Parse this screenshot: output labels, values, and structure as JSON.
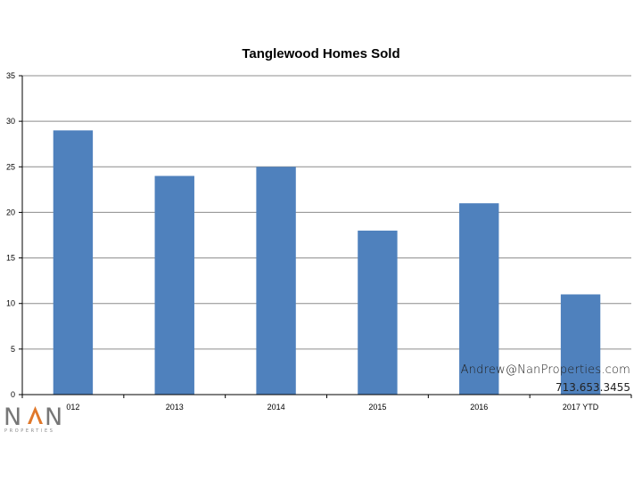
{
  "chart_data": {
    "type": "bar",
    "title": "Tanglewood Homes Sold",
    "categories": [
      "012",
      "2013",
      "2014",
      "2015",
      "2016",
      "2017 YTD"
    ],
    "values": [
      29,
      24,
      25,
      18,
      21,
      11
    ],
    "ylim": [
      0,
      35
    ],
    "yticks": [
      0,
      5,
      10,
      15,
      20,
      25,
      30,
      35
    ],
    "xlabel": "",
    "ylabel": "",
    "grid": true,
    "bar_color": "#4f81bd",
    "grid_color": "#8c8c8c"
  },
  "contact": {
    "email": "Andrew@NanProperties.com",
    "phone": "713.653.3455"
  },
  "logo": {
    "name": "NAN",
    "subtitle": "PROPERTIES",
    "accent_color": "#e0782a"
  }
}
